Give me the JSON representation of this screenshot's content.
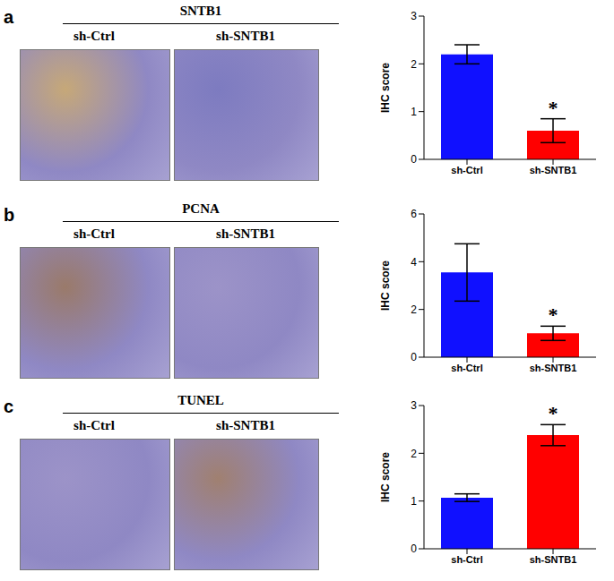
{
  "panels": [
    {
      "letter": "a",
      "title": "SNTB1",
      "image_labels": [
        "sh-Ctrl",
        "sh-SNTB1"
      ]
    },
    {
      "letter": "b",
      "title": "PCNA",
      "image_labels": [
        "sh-Ctrl",
        "sh-SNTB1"
      ]
    },
    {
      "letter": "c",
      "title": "TUNEL",
      "image_labels": [
        "sh-Ctrl",
        "sh-SNTB1"
      ]
    }
  ],
  "chart_data": [
    {
      "type": "bar",
      "categories": [
        "sh-Ctrl",
        "sh-SNTB1"
      ],
      "values": [
        2.2,
        0.6
      ],
      "errors": [
        0.2,
        0.25
      ],
      "colors": [
        "#1010ff",
        "#ff0000"
      ],
      "ylabel": "IHC score",
      "ylim": [
        0,
        3
      ],
      "yticks": [
        0,
        1,
        2,
        3
      ],
      "annotations": [
        {
          "category": "sh-SNTB1",
          "text": "*"
        }
      ]
    },
    {
      "type": "bar",
      "categories": [
        "sh-Ctrl",
        "sh-SNTB1"
      ],
      "values": [
        3.55,
        1.0
      ],
      "errors": [
        1.2,
        0.3
      ],
      "colors": [
        "#1010ff",
        "#ff0000"
      ],
      "ylabel": "IHC score",
      "ylim": [
        0,
        6
      ],
      "yticks": [
        0,
        2,
        4,
        6
      ],
      "annotations": [
        {
          "category": "sh-SNTB1",
          "text": "*"
        }
      ]
    },
    {
      "type": "bar",
      "categories": [
        "sh-Ctrl",
        "sh-SNTB1"
      ],
      "values": [
        1.07,
        2.38
      ],
      "errors": [
        0.08,
        0.22
      ],
      "colors": [
        "#1010ff",
        "#ff0000"
      ],
      "ylabel": "IHC score",
      "ylim": [
        0,
        3
      ],
      "yticks": [
        0,
        1,
        2,
        3
      ],
      "annotations": [
        {
          "category": "sh-SNTB1",
          "text": "*"
        }
      ]
    }
  ]
}
